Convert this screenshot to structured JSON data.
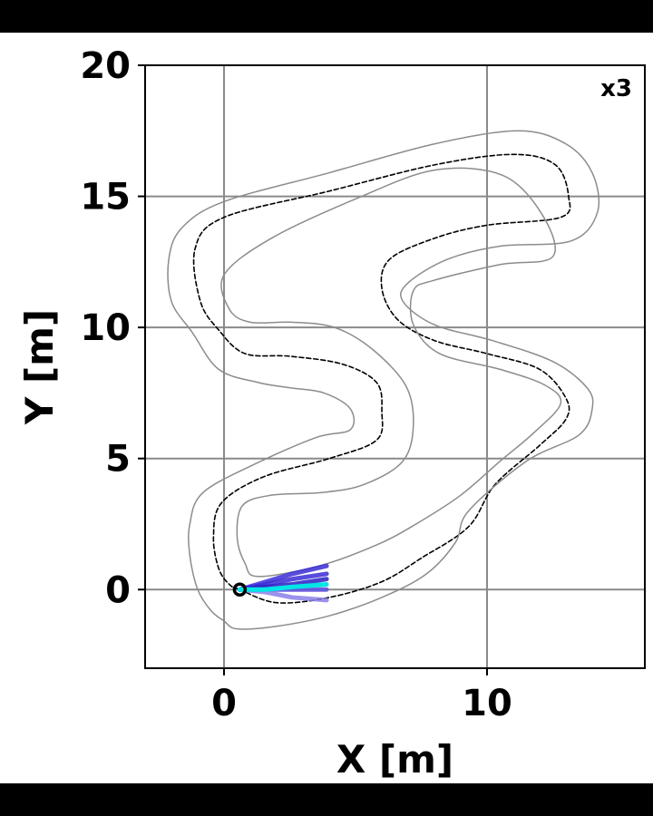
{
  "chart_data": {
    "type": "line",
    "xlabel": "X [m]",
    "ylabel": "Y [m]",
    "xlim": [
      -3,
      16
    ],
    "ylim": [
      -3,
      20
    ],
    "xticks": [
      0,
      10
    ],
    "yticks": [
      0,
      5,
      10,
      15,
      20
    ],
    "grid": true,
    "annotation": "x3",
    "series": [
      {
        "role": "centerline",
        "style": "dashed",
        "color": "#000000",
        "x": [
          0.6,
          2.0,
          4.0,
          6.0,
          7.5,
          9.3,
          10.3,
          12.0,
          13.0,
          13.0,
          12.0,
          10.0,
          8.0,
          6.6,
          6.0,
          6.3,
          8.0,
          10.0,
          12.8,
          13.1,
          12.6,
          11.0,
          8.0,
          4.0,
          0.0,
          -1.1,
          -0.9,
          -0.2,
          0.8,
          2.5,
          4.5,
          5.8,
          6.0,
          5.8,
          4.0,
          1.5,
          -0.1,
          -0.4,
          -0.2,
          0.2,
          0.6
        ],
        "y": [
          0.0,
          -0.5,
          -0.3,
          0.3,
          1.2,
          2.4,
          4.0,
          5.5,
          6.5,
          7.3,
          8.4,
          9.0,
          9.5,
          10.3,
          11.5,
          12.6,
          13.4,
          13.9,
          14.2,
          15.0,
          16.2,
          16.6,
          16.2,
          15.2,
          14.2,
          13.0,
          11.0,
          9.9,
          9.0,
          8.9,
          8.6,
          7.9,
          6.8,
          5.7,
          5.0,
          4.3,
          3.3,
          2.0,
          0.8,
          0.2,
          0.0
        ]
      },
      {
        "role": "outer-boundary",
        "style": "solid",
        "color": "#8c8c8c",
        "x": [
          0.5,
          2.0,
          4.0,
          6.0,
          7.7,
          8.8,
          9.3,
          11.5,
          13.5,
          14.0,
          13.8,
          12.5,
          10.2,
          8.0,
          6.8,
          7.0,
          8.5,
          10.5,
          13.2,
          14.2,
          14.0,
          13.0,
          11.2,
          8.0,
          4.0,
          0.0,
          -1.6,
          -2.1,
          -2.0,
          -1.2,
          -0.2,
          1.3,
          2.5,
          3.8,
          4.8,
          4.8,
          3.5,
          1.2,
          -0.8,
          -1.3,
          -1.3,
          -1.0,
          -0.5,
          0.0,
          0.5
        ],
        "y": [
          -1.5,
          -1.4,
          -1.0,
          -0.3,
          0.6,
          1.8,
          3.0,
          4.9,
          5.9,
          6.9,
          7.7,
          8.7,
          9.5,
          10.1,
          11.0,
          11.7,
          12.6,
          13.1,
          13.3,
          14.4,
          15.9,
          17.0,
          17.5,
          17.0,
          15.9,
          14.8,
          13.8,
          12.6,
          11.0,
          9.8,
          8.4,
          7.9,
          7.7,
          7.5,
          6.9,
          6.1,
          5.8,
          4.8,
          3.7,
          2.5,
          1.3,
          0.0,
          -0.8,
          -1.2,
          -1.5
        ]
      },
      {
        "role": "inner-boundary",
        "style": "solid",
        "color": "#8c8c8c",
        "x": [
          1.3,
          3.6,
          5.8,
          7.3,
          9.0,
          10.5,
          11.8,
          12.8,
          12.2,
          10.5,
          8.2,
          7.2,
          7.2,
          8.0,
          10.5,
          12.5,
          12.1,
          10.6,
          8.0,
          5.0,
          1.8,
          0.0,
          0.2,
          1.0,
          2.6,
          4.2,
          5.6,
          6.9,
          7.2,
          6.8,
          5.3,
          3.7,
          1.8,
          0.7,
          0.5,
          0.8,
          1.3
        ],
        "y": [
          0.5,
          0.9,
          1.7,
          2.5,
          3.6,
          4.9,
          6.0,
          7.1,
          7.8,
          8.4,
          9.0,
          10.1,
          11.4,
          11.8,
          12.4,
          12.7,
          14.3,
          15.8,
          16.0,
          14.9,
          13.4,
          12.0,
          10.7,
          10.2,
          10.2,
          10.0,
          9.2,
          7.8,
          6.3,
          4.9,
          4.0,
          3.7,
          3.6,
          3.2,
          2.0,
          1.0,
          0.5
        ]
      },
      {
        "role": "predicted-trajectory",
        "style": "solid",
        "color": "#3a2bd6",
        "x": [
          0.6,
          1.6,
          2.6,
          3.9
        ],
        "y": [
          0.0,
          0.3,
          0.6,
          0.9
        ]
      },
      {
        "role": "predicted-trajectory",
        "style": "solid",
        "color": "#3a2bd6",
        "x": [
          0.6,
          1.6,
          2.6,
          3.9
        ],
        "y": [
          0.0,
          0.2,
          0.4,
          0.6
        ]
      },
      {
        "role": "predicted-trajectory",
        "style": "solid",
        "color": "#2a1dc4",
        "x": [
          0.6,
          1.6,
          2.6,
          3.9
        ],
        "y": [
          0.0,
          0.1,
          0.2,
          0.4
        ]
      },
      {
        "role": "predicted-trajectory",
        "style": "solid",
        "color": "#5a4ce0",
        "x": [
          0.6,
          1.6,
          2.6,
          3.9
        ],
        "y": [
          0.0,
          0.0,
          0.0,
          0.0
        ]
      },
      {
        "role": "predicted-trajectory",
        "style": "solid",
        "color": "#8a80e8",
        "x": [
          0.6,
          1.6,
          2.6,
          3.9
        ],
        "y": [
          0.0,
          -0.1,
          -0.3,
          -0.4
        ]
      },
      {
        "role": "selected-trajectory",
        "style": "solid",
        "color": "#00e5e5",
        "x": [
          0.6,
          1.6,
          2.6,
          3.9
        ],
        "y": [
          0.0,
          0.0,
          0.1,
          0.2
        ]
      }
    ],
    "marker": {
      "role": "vehicle-position",
      "x": 0.6,
      "y": 0.0,
      "shape": "open-circle",
      "color": "#000000"
    }
  }
}
